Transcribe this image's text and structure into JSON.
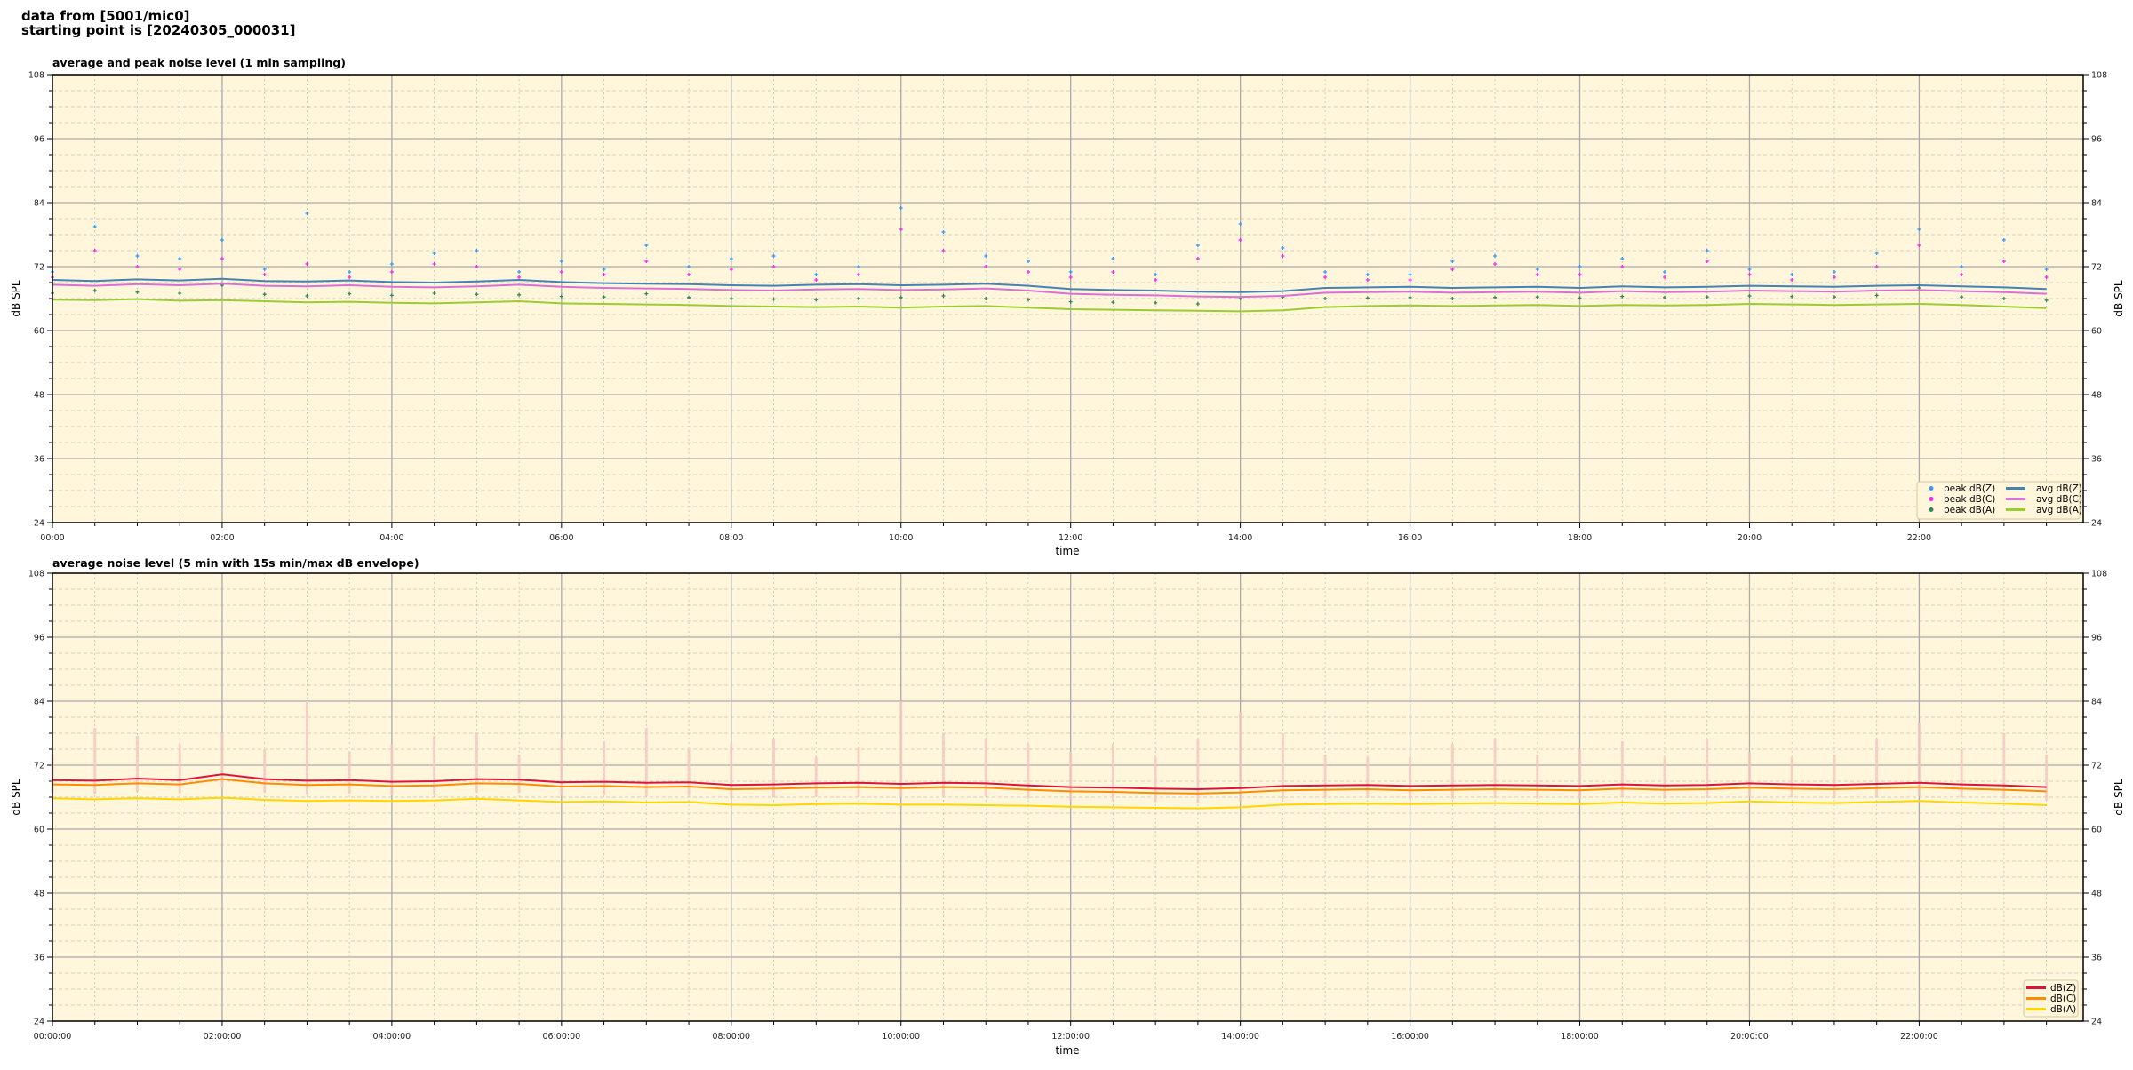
{
  "suptitle_line1": "data from [5001/mic0]",
  "suptitle_line2": "starting point is [20240305_000031]",
  "colors": {
    "plot_bg": "#fff6dc",
    "grid_major": "#aaaaaa",
    "grid_minor": "#c8c0b0",
    "envelope": "#f5c8c0"
  },
  "chart_data": [
    {
      "type": "line",
      "title": "average and peak noise level (1 min sampling)",
      "xlabel": "time",
      "ylabel": "dB SPL",
      "ylim": [
        24,
        108
      ],
      "xlim": [
        "00:00",
        "23:56"
      ],
      "yticks": [
        "24",
        "36",
        "48",
        "60",
        "72",
        "84",
        "96",
        "108"
      ],
      "xticks": [
        "00:00",
        "02:00",
        "04:00",
        "06:00",
        "08:00",
        "10:00",
        "12:00",
        "14:00",
        "16:00",
        "18:00",
        "20:00",
        "22:00"
      ],
      "grid": true,
      "legend_position": "lower-right",
      "x": [
        "00:00",
        "00:30",
        "01:00",
        "01:30",
        "02:00",
        "02:30",
        "03:00",
        "03:30",
        "04:00",
        "04:30",
        "05:00",
        "05:30",
        "06:00",
        "06:30",
        "07:00",
        "07:30",
        "08:00",
        "08:30",
        "09:00",
        "09:30",
        "10:00",
        "10:30",
        "11:00",
        "11:30",
        "12:00",
        "12:30",
        "13:00",
        "13:30",
        "14:00",
        "14:30",
        "15:00",
        "15:30",
        "16:00",
        "16:30",
        "17:00",
        "17:30",
        "18:00",
        "18:30",
        "19:00",
        "19:30",
        "20:00",
        "20:30",
        "21:00",
        "21:30",
        "22:00",
        "22:30",
        "23:00",
        "23:30"
      ],
      "series": [
        {
          "name": "peak dB(Z)",
          "kind": "scatter",
          "color": "#3399ff",
          "values": [
            71.0,
            79.5,
            74.0,
            73.5,
            77.0,
            71.5,
            82.0,
            71.0,
            72.5,
            74.5,
            75.0,
            71.0,
            73.0,
            71.5,
            76.0,
            72.0,
            73.5,
            74.0,
            70.5,
            72.0,
            83.0,
            78.5,
            74.0,
            73.0,
            71.0,
            73.5,
            70.5,
            76.0,
            80.0,
            75.5,
            71.0,
            70.5,
            70.5,
            73.0,
            74.0,
            71.5,
            72.0,
            73.5,
            71.0,
            75.0,
            71.5,
            70.5,
            71.0,
            74.5,
            79.0,
            72.0,
            77.0,
            71.5
          ]
        },
        {
          "name": "peak dB(C)",
          "kind": "scatter",
          "color": "#ff22ee",
          "values": [
            70.0,
            75.0,
            72.0,
            71.5,
            73.5,
            70.5,
            72.5,
            70.0,
            71.0,
            72.5,
            72.0,
            70.0,
            71.0,
            70.5,
            73.0,
            70.5,
            71.5,
            72.0,
            69.5,
            70.5,
            79.0,
            75.0,
            72.0,
            71.0,
            70.0,
            71.0,
            69.5,
            73.5,
            77.0,
            74.0,
            70.0,
            69.5,
            69.5,
            71.5,
            72.5,
            70.5,
            70.5,
            72.0,
            70.0,
            73.0,
            70.5,
            69.5,
            70.0,
            72.0,
            76.0,
            70.5,
            73.0,
            70.0
          ]
        },
        {
          "name": "peak dB(A)",
          "kind": "scatter",
          "color": "#2e8b57",
          "values": [
            67.0,
            67.5,
            67.2,
            67.0,
            68.5,
            66.8,
            66.5,
            66.9,
            66.6,
            67.0,
            66.8,
            66.7,
            66.4,
            66.3,
            66.9,
            66.2,
            66.0,
            65.9,
            65.8,
            66.0,
            66.2,
            66.5,
            66.0,
            65.8,
            65.4,
            65.3,
            65.2,
            65.0,
            66.0,
            66.3,
            66.0,
            66.1,
            66.2,
            66.0,
            66.2,
            66.3,
            66.1,
            66.4,
            66.2,
            66.3,
            66.5,
            66.4,
            66.3,
            66.6,
            68.0,
            66.3,
            66.0,
            65.7
          ]
        },
        {
          "name": "avg dB(Z)",
          "kind": "line",
          "color": "#4682b4",
          "values": [
            69.5,
            69.3,
            69.6,
            69.4,
            69.7,
            69.3,
            69.2,
            69.4,
            69.1,
            69.0,
            69.2,
            69.5,
            69.1,
            68.9,
            68.8,
            68.7,
            68.5,
            68.4,
            68.6,
            68.7,
            68.5,
            68.6,
            68.8,
            68.4,
            67.8,
            67.6,
            67.5,
            67.3,
            67.2,
            67.4,
            68.0,
            68.1,
            68.2,
            68.0,
            68.1,
            68.2,
            68.0,
            68.3,
            68.1,
            68.2,
            68.4,
            68.3,
            68.2,
            68.4,
            68.5,
            68.3,
            68.1,
            67.8
          ]
        },
        {
          "name": "avg dB(C)",
          "kind": "line",
          "color": "#da70d6",
          "values": [
            68.6,
            68.4,
            68.7,
            68.5,
            68.8,
            68.4,
            68.3,
            68.5,
            68.2,
            68.1,
            68.3,
            68.6,
            68.2,
            68.0,
            67.9,
            67.8,
            67.6,
            67.5,
            67.7,
            67.8,
            67.6,
            67.7,
            67.9,
            67.5,
            66.9,
            66.7,
            66.6,
            66.4,
            66.3,
            66.5,
            67.1,
            67.2,
            67.3,
            67.1,
            67.2,
            67.3,
            67.1,
            67.4,
            67.2,
            67.3,
            67.5,
            67.4,
            67.3,
            67.5,
            67.6,
            67.4,
            67.2,
            66.9
          ]
        },
        {
          "name": "avg dB(A)",
          "kind": "line",
          "color": "#9acd32",
          "values": [
            65.8,
            65.7,
            65.9,
            65.6,
            65.7,
            65.5,
            65.3,
            65.4,
            65.2,
            65.1,
            65.3,
            65.5,
            65.1,
            65.0,
            64.9,
            64.8,
            64.6,
            64.5,
            64.4,
            64.5,
            64.3,
            64.5,
            64.6,
            64.3,
            64.0,
            63.9,
            63.8,
            63.7,
            63.6,
            63.8,
            64.4,
            64.6,
            64.7,
            64.6,
            64.7,
            64.8,
            64.6,
            64.8,
            64.7,
            64.8,
            65.0,
            64.9,
            64.8,
            64.9,
            65.0,
            64.8,
            64.5,
            64.2
          ]
        }
      ]
    },
    {
      "type": "line",
      "title": "average noise level (5 min with 15s min/max dB envelope)",
      "xlabel": "time",
      "ylabel": "dB SPL",
      "ylim": [
        24,
        108
      ],
      "xlim": [
        "00:00:00",
        "23:56:00"
      ],
      "yticks": [
        "24",
        "36",
        "48",
        "60",
        "72",
        "84",
        "96",
        "108"
      ],
      "xticks": [
        "00:00:00",
        "02:00:00",
        "04:00:00",
        "06:00:00",
        "08:00:00",
        "10:00:00",
        "12:00:00",
        "14:00:00",
        "16:00:00",
        "18:00:00",
        "20:00:00",
        "22:00:00"
      ],
      "grid": true,
      "legend_position": "lower-right",
      "x": [
        "00:00",
        "00:30",
        "01:00",
        "01:30",
        "02:00",
        "02:30",
        "03:00",
        "03:30",
        "04:00",
        "04:30",
        "05:00",
        "05:30",
        "06:00",
        "06:30",
        "07:00",
        "07:30",
        "08:00",
        "08:30",
        "09:00",
        "09:30",
        "10:00",
        "10:30",
        "11:00",
        "11:30",
        "12:00",
        "12:30",
        "13:00",
        "13:30",
        "14:00",
        "14:30",
        "15:00",
        "15:30",
        "16:00",
        "16:30",
        "17:00",
        "17:30",
        "18:00",
        "18:30",
        "19:00",
        "19:30",
        "20:00",
        "20:30",
        "21:00",
        "21:30",
        "22:00",
        "22:30",
        "23:00",
        "23:30"
      ],
      "envelope_max": [
        74.0,
        79.0,
        77.5,
        76.0,
        78.0,
        75.0,
        84.0,
        74.5,
        76.0,
        77.5,
        78.0,
        74.0,
        77.0,
        76.5,
        79.0,
        75.0,
        76.0,
        77.0,
        73.5,
        75.5,
        84.0,
        78.0,
        77.0,
        76.0,
        74.5,
        76.0,
        73.5,
        77.0,
        82.0,
        78.0,
        74.0,
        73.5,
        73.5,
        76.0,
        77.0,
        74.0,
        75.0,
        76.5,
        73.5,
        77.0,
        74.5,
        73.5,
        74.0,
        77.0,
        80.0,
        75.0,
        78.0,
        74.0
      ],
      "series": [
        {
          "name": "dB(Z)",
          "color": "#dc143c",
          "values": [
            69.2,
            69.1,
            69.5,
            69.2,
            70.3,
            69.4,
            69.1,
            69.2,
            68.9,
            69.0,
            69.4,
            69.3,
            68.8,
            68.9,
            68.7,
            68.8,
            68.3,
            68.4,
            68.6,
            68.7,
            68.5,
            68.7,
            68.6,
            68.2,
            67.9,
            67.8,
            67.6,
            67.5,
            67.7,
            68.1,
            68.2,
            68.3,
            68.1,
            68.2,
            68.3,
            68.2,
            68.1,
            68.4,
            68.2,
            68.3,
            68.6,
            68.4,
            68.3,
            68.5,
            68.7,
            68.4,
            68.2,
            67.9
          ]
        },
        {
          "name": "dB(C)",
          "color": "#ff8c00",
          "values": [
            68.4,
            68.3,
            68.6,
            68.4,
            69.4,
            68.6,
            68.3,
            68.4,
            68.1,
            68.2,
            68.6,
            68.5,
            68.0,
            68.1,
            67.9,
            68.0,
            67.5,
            67.6,
            67.8,
            67.9,
            67.7,
            67.9,
            67.8,
            67.4,
            67.1,
            67.0,
            66.8,
            66.7,
            66.9,
            67.3,
            67.4,
            67.5,
            67.3,
            67.4,
            67.5,
            67.4,
            67.3,
            67.6,
            67.4,
            67.5,
            67.8,
            67.6,
            67.5,
            67.7,
            67.9,
            67.6,
            67.4,
            67.1
          ]
        },
        {
          "name": "dB(A)",
          "color": "#ffd700",
          "values": [
            65.8,
            65.6,
            65.8,
            65.6,
            65.9,
            65.5,
            65.3,
            65.4,
            65.3,
            65.4,
            65.7,
            65.4,
            65.1,
            65.2,
            65.0,
            65.1,
            64.6,
            64.5,
            64.7,
            64.8,
            64.6,
            64.6,
            64.5,
            64.4,
            64.2,
            64.1,
            64.0,
            63.9,
            64.1,
            64.6,
            64.7,
            64.8,
            64.7,
            64.8,
            64.9,
            64.8,
            64.7,
            65.0,
            64.8,
            64.9,
            65.2,
            65.0,
            64.9,
            65.1,
            65.3,
            65.0,
            64.8,
            64.5
          ]
        }
      ]
    }
  ]
}
